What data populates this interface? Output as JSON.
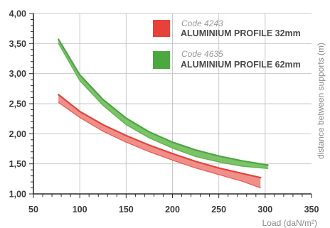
{
  "chart_data": {
    "type": "area",
    "xlabel": "Load (daN/m²)",
    "ylabel": "distance between supports (m)",
    "xlim": [
      50,
      350
    ],
    "ylim": [
      1.0,
      4.0
    ],
    "x_ticks": [
      "50",
      "100",
      "150",
      "200",
      "250",
      "300",
      "350"
    ],
    "y_ticks": [
      "1,00",
      "1,50",
      "2,00",
      "2,50",
      "3,00",
      "3,50",
      "4,00"
    ],
    "grid": true,
    "legend_position": "top-right",
    "series": [
      {
        "code": "Code 4243",
        "name": "ALUMINIUM PROFILE 32mm",
        "color": "#e8413a",
        "fill": "#ef8f89",
        "x": [
          77,
          100,
          125,
          150,
          175,
          200,
          225,
          250,
          275,
          295
        ],
        "upper": [
          2.65,
          2.37,
          2.15,
          1.97,
          1.81,
          1.67,
          1.54,
          1.43,
          1.34,
          1.27
        ],
        "lower": [
          2.52,
          2.27,
          2.04,
          1.86,
          1.7,
          1.56,
          1.43,
          1.32,
          1.21,
          1.1
        ]
      },
      {
        "code": "Code 4635",
        "name": "ALUMINIUM PROFILE 62mm",
        "color": "#4aa83f",
        "fill": "#7cc266",
        "x": [
          77,
          100,
          125,
          150,
          175,
          200,
          225,
          250,
          275,
          303
        ],
        "upper": [
          3.57,
          2.98,
          2.57,
          2.26,
          2.03,
          1.86,
          1.73,
          1.63,
          1.55,
          1.48
        ],
        "lower": [
          3.5,
          2.88,
          2.47,
          2.15,
          1.93,
          1.76,
          1.62,
          1.53,
          1.46,
          1.42
        ]
      }
    ]
  }
}
